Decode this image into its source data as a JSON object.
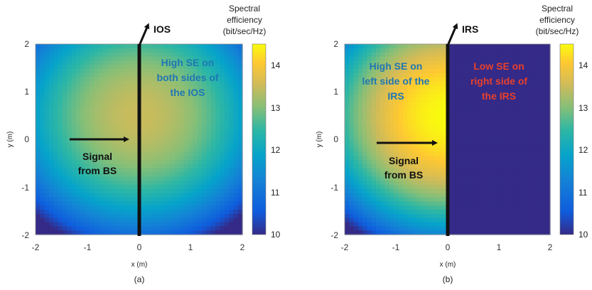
{
  "chart_data": [
    {
      "type": "heatmap",
      "caption": "(a)",
      "xlabel": "x (m)",
      "ylabel": "y (m)",
      "xlim": [
        -2,
        2
      ],
      "ylim": [
        -2,
        2
      ],
      "x_ticks": [
        "-2",
        "-1",
        "0",
        "1",
        "2"
      ],
      "y_ticks": [
        "-2",
        "-1",
        "0",
        "1",
        "2"
      ],
      "surface": {
        "label": "IOS",
        "x": 0
      },
      "colorbar": {
        "title": [
          "Spectral",
          "efficiency",
          "(bit/sec/Hz)"
        ],
        "range": [
          10,
          14.5
        ],
        "ticks": [
          "10",
          "11",
          "12",
          "13",
          "14"
        ]
      },
      "field": {
        "model": "radial",
        "center": [
          0,
          0.5
        ],
        "peak": 13.5,
        "falloff_per_m": 0.42,
        "cut_side": null,
        "cut_value": null
      },
      "annotations": {
        "se_text": [
          "High SE on",
          "both sides of",
          "the IOS"
        ],
        "se_color": "#1f77b4",
        "signal_text": [
          "Signal",
          "from BS"
        ]
      }
    },
    {
      "type": "heatmap",
      "caption": "(b)",
      "xlabel": "x (m)",
      "ylabel": "y (m)",
      "xlim": [
        -2,
        2
      ],
      "ylim": [
        -2,
        2
      ],
      "x_ticks": [
        "-2",
        "-1",
        "0",
        "1",
        "2"
      ],
      "y_ticks": [
        "-2",
        "-1",
        "0",
        "1",
        "2"
      ],
      "surface": {
        "label": "IRS",
        "x": 0
      },
      "colorbar": {
        "title": [
          "Spectral",
          "efficiency",
          "(bit/sec/Hz)"
        ],
        "range": [
          10,
          14.5
        ],
        "ticks": [
          "10",
          "11",
          "12",
          "13",
          "14"
        ]
      },
      "field": {
        "model": "radial",
        "center": [
          0,
          0.5
        ],
        "peak": 14.5,
        "falloff_per_m": 0.5,
        "cut_side": "right",
        "cut_value": 10
      },
      "annotations": {
        "se_left_text": [
          "High SE on",
          "left side of the",
          "IRS"
        ],
        "se_left_color": "#1f77b4",
        "se_right_text": [
          "Low SE on",
          "right side of",
          "the IRS"
        ],
        "se_right_color": "#e8402a",
        "signal_text": [
          "Signal",
          "from BS"
        ]
      }
    }
  ]
}
